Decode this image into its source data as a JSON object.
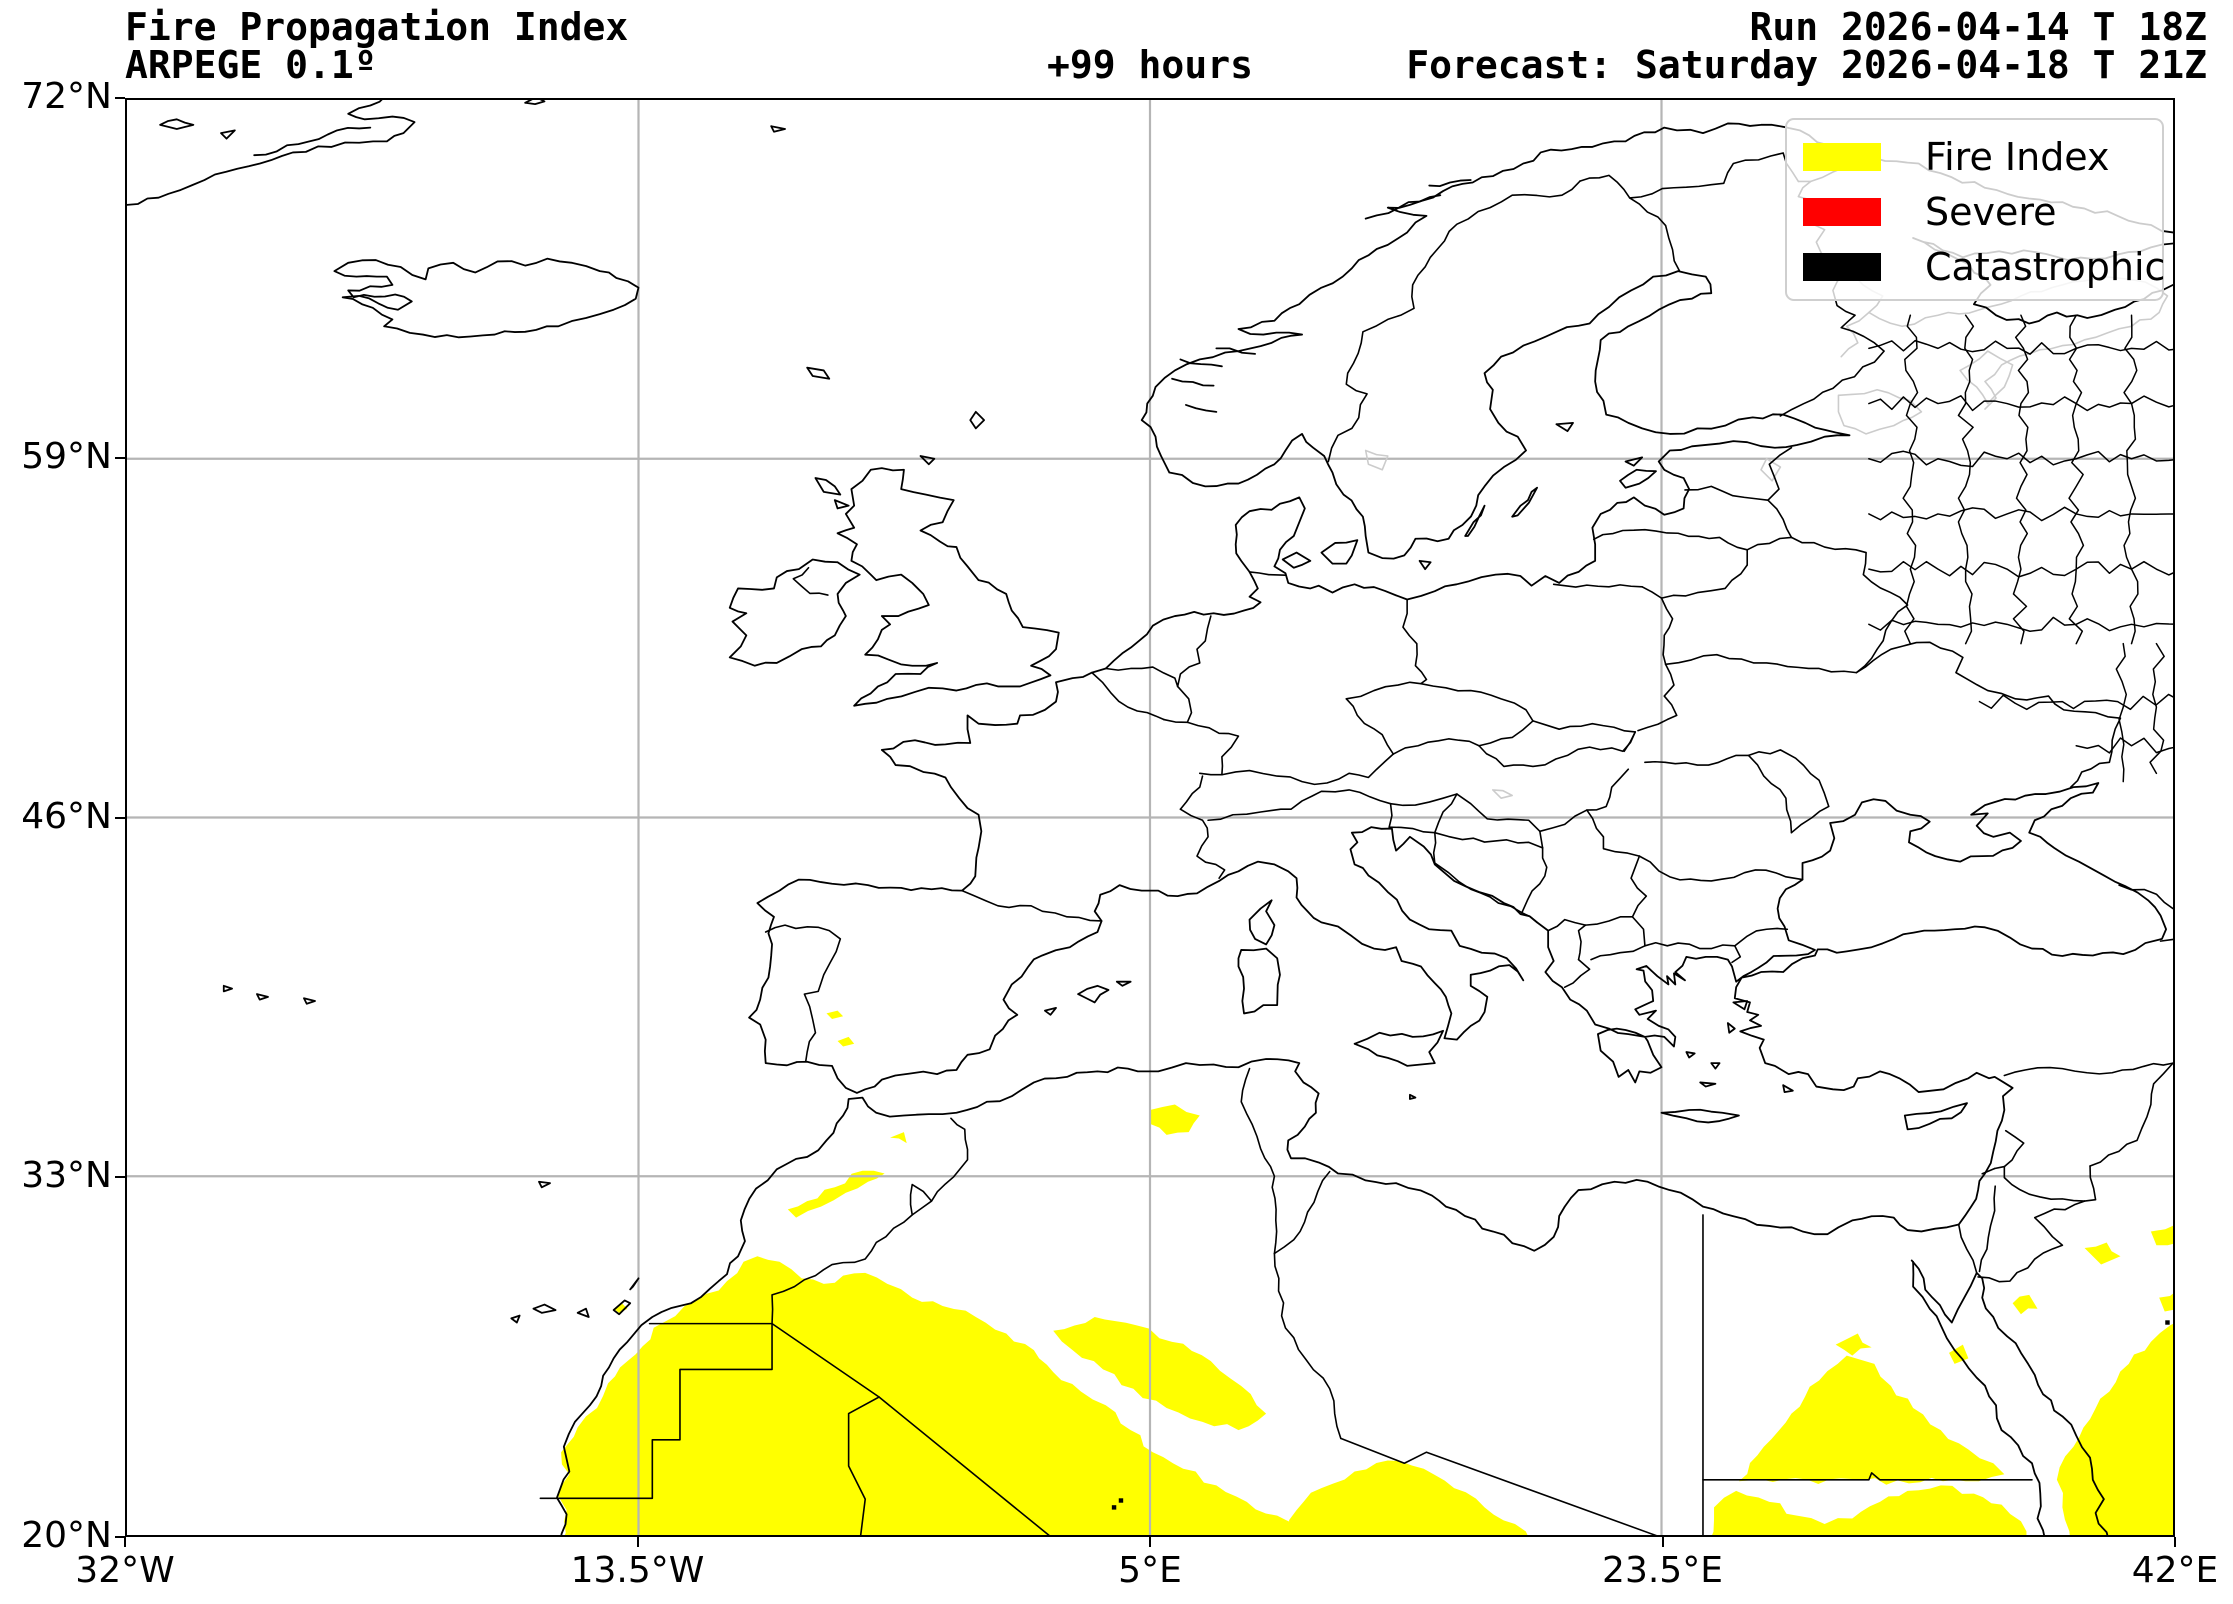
{
  "header": {
    "title_line1": "Fire Propagation Index",
    "title_line2": "ARPEGE 0.1º",
    "lead_time": "+99 hours",
    "run_label": "Run 2026-04-14 T 18Z",
    "forecast_label": "Forecast: Saturday 2026-04-18 T 21Z"
  },
  "legend": {
    "items": [
      {
        "label": "Fire Index",
        "color": "#ffff00"
      },
      {
        "label": "Severe",
        "color": "#ff0000"
      },
      {
        "label": "Catastrophic",
        "color": "#000000"
      }
    ]
  },
  "axes": {
    "x_ticks": [
      {
        "label": "32°W",
        "lon": -32
      },
      {
        "label": "13.5°W",
        "lon": -13.5
      },
      {
        "label": "5°E",
        "lon": 5
      },
      {
        "label": "23.5°E",
        "lon": 23.5
      },
      {
        "label": "42°E",
        "lon": 42
      }
    ],
    "y_ticks": [
      {
        "label": "72°N",
        "lat": 72
      },
      {
        "label": "59°N",
        "lat": 59
      },
      {
        "label": "46°N",
        "lat": 46
      },
      {
        "label": "33°N",
        "lat": 33
      },
      {
        "label": "20°N",
        "lat": 20
      }
    ]
  },
  "map": {
    "extent": {
      "west": -32,
      "east": 42,
      "south": 20,
      "north": 72
    },
    "gridline_color": "#b5b5b5",
    "coast_color": "#000000",
    "lake_color": "#cccccc",
    "fire_color": "#ffff00",
    "severe_color": "#ff0000",
    "catastrophic_color": "#000000"
  }
}
